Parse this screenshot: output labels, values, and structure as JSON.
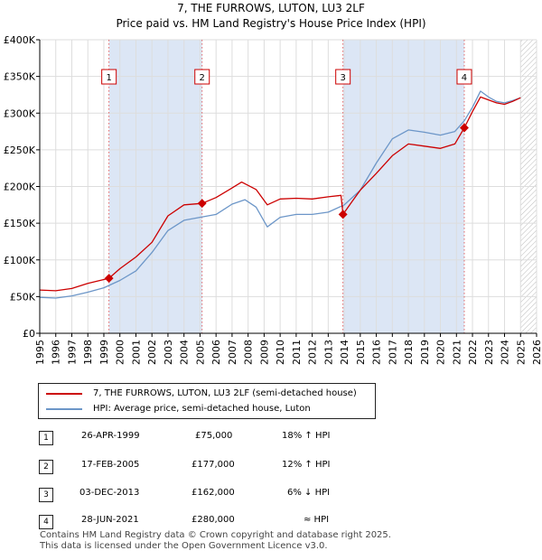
{
  "header": {
    "title": "7, THE FURROWS, LUTON, LU3 2LF",
    "subtitle": "Price paid vs. HM Land Registry's House Price Index (HPI)"
  },
  "chart_data": {
    "type": "line",
    "x_range": [
      1995,
      2026
    ],
    "ylim": [
      0,
      400000
    ],
    "y_ticks": [
      {
        "value": 0,
        "label": "£0"
      },
      {
        "value": 50000,
        "label": "£50K"
      },
      {
        "value": 100000,
        "label": "£100K"
      },
      {
        "value": 150000,
        "label": "£150K"
      },
      {
        "value": 200000,
        "label": "£200K"
      },
      {
        "value": 250000,
        "label": "£250K"
      },
      {
        "value": 300000,
        "label": "£300K"
      },
      {
        "value": 350000,
        "label": "£350K"
      },
      {
        "value": 400000,
        "label": "£400K"
      }
    ],
    "x_ticks": [
      1995,
      1996,
      1997,
      1998,
      1999,
      2000,
      2001,
      2002,
      2003,
      2004,
      2005,
      2006,
      2007,
      2008,
      2009,
      2010,
      2011,
      2012,
      2013,
      2014,
      2015,
      2016,
      2017,
      2018,
      2019,
      2020,
      2021,
      2022,
      2023,
      2024,
      2025,
      2026
    ],
    "grid": true,
    "shaded_periods": [
      [
        1999.32,
        2005.13
      ],
      [
        2013.92,
        2021.49
      ]
    ],
    "hatched_after": 2025.0,
    "colors": {
      "property": "#cc0000",
      "hpi": "#6c96c8",
      "shade": "#dce6f5",
      "sale_marker": "#cc0000",
      "event_line": "#dd4444"
    },
    "series": [
      {
        "name": "7, THE FURROWS, LUTON, LU3 2LF (semi-detached house)",
        "color": "#cc0000",
        "points": [
          [
            1995,
            59000
          ],
          [
            1996,
            58000
          ],
          [
            1997,
            61000
          ],
          [
            1998,
            68000
          ],
          [
            1999.32,
            75000
          ],
          [
            2000,
            88000
          ],
          [
            2001,
            104000
          ],
          [
            2002,
            124000
          ],
          [
            2003,
            160000
          ],
          [
            2004,
            175000
          ],
          [
            2005.13,
            177000
          ],
          [
            2006,
            185000
          ],
          [
            2007,
            198000
          ],
          [
            2007.6,
            206000
          ],
          [
            2008.5,
            196000
          ],
          [
            2009.2,
            175000
          ],
          [
            2010,
            183000
          ],
          [
            2011,
            184000
          ],
          [
            2012,
            183000
          ],
          [
            2013,
            186000
          ],
          [
            2013.8,
            188000
          ],
          [
            2013.92,
            162000
          ],
          [
            2014.5,
            180000
          ],
          [
            2015,
            195000
          ],
          [
            2016,
            218000
          ],
          [
            2017,
            242000
          ],
          [
            2018,
            258000
          ],
          [
            2019,
            255000
          ],
          [
            2020,
            252000
          ],
          [
            2020.9,
            258000
          ],
          [
            2021.49,
            280000
          ],
          [
            2022,
            302000
          ],
          [
            2022.5,
            322000
          ],
          [
            2023,
            318000
          ],
          [
            2023.5,
            314000
          ],
          [
            2024,
            312000
          ],
          [
            2024.5,
            316000
          ],
          [
            2025,
            321000
          ]
        ]
      },
      {
        "name": "HPI: Average price, semi-detached house, Luton",
        "color": "#6c96c8",
        "points": [
          [
            1995,
            49000
          ],
          [
            1996,
            48000
          ],
          [
            1997,
            51000
          ],
          [
            1998,
            56000
          ],
          [
            1999,
            62000
          ],
          [
            2000,
            72000
          ],
          [
            2001,
            85000
          ],
          [
            2002,
            110000
          ],
          [
            2003,
            140000
          ],
          [
            2004,
            154000
          ],
          [
            2005,
            158000
          ],
          [
            2006,
            162000
          ],
          [
            2007,
            176000
          ],
          [
            2007.8,
            182000
          ],
          [
            2008.5,
            172000
          ],
          [
            2009.2,
            145000
          ],
          [
            2010,
            158000
          ],
          [
            2011,
            162000
          ],
          [
            2012,
            162000
          ],
          [
            2013,
            165000
          ],
          [
            2014,
            175000
          ],
          [
            2015,
            195000
          ],
          [
            2016,
            232000
          ],
          [
            2017,
            265000
          ],
          [
            2018,
            277000
          ],
          [
            2019,
            274000
          ],
          [
            2020,
            270000
          ],
          [
            2020.9,
            275000
          ],
          [
            2021.5,
            290000
          ],
          [
            2022,
            308000
          ],
          [
            2022.5,
            330000
          ],
          [
            2023,
            322000
          ],
          [
            2023.5,
            316000
          ],
          [
            2024,
            314000
          ],
          [
            2024.5,
            317000
          ],
          [
            2025,
            321000
          ]
        ]
      }
    ],
    "sales": [
      {
        "num": "1",
        "x": 1999.32,
        "price": 75000,
        "date": "26-APR-1999",
        "price_label": "£75,000",
        "hpi": "18% ↑ HPI"
      },
      {
        "num": "2",
        "x": 2005.13,
        "price": 177000,
        "date": "17-FEB-2005",
        "price_label": "£177,000",
        "hpi": "12% ↑ HPI"
      },
      {
        "num": "3",
        "x": 2013.92,
        "price": 162000,
        "date": "03-DEC-2013",
        "price_label": "£162,000",
        "hpi": "6% ↓ HPI"
      },
      {
        "num": "4",
        "x": 2021.49,
        "price": 280000,
        "date": "28-JUN-2021",
        "price_label": "£280,000",
        "hpi": "≈ HPI"
      }
    ]
  },
  "footer": {
    "line1": "Contains HM Land Registry data © Crown copyright and database right 2025.",
    "line2": "This data is licensed under the Open Government Licence v3.0."
  }
}
